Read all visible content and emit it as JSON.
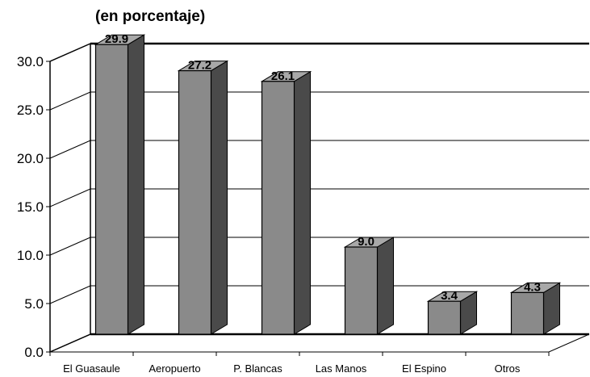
{
  "chart_data": {
    "type": "bar",
    "subtitle": "(en porcentaje)",
    "categories": [
      "El Guasaule",
      "Aeropuerto",
      "P. Blancas",
      "Las Manos",
      "El Espino",
      "Otros"
    ],
    "values": [
      29.9,
      27.2,
      26.1,
      9.0,
      3.4,
      4.3
    ],
    "value_labels": [
      "29.9",
      "27.2",
      "26.1",
      "9.0",
      "3.4",
      "4.3"
    ],
    "y_ticks": [
      "0.0",
      "5.0",
      "10.0",
      "15.0",
      "20.0",
      "25.0",
      "30.0"
    ],
    "ylim": [
      0,
      30
    ],
    "grid": true,
    "legend": "none",
    "style": "3d-bar",
    "colors": {
      "bar_front": "#8a8a8a",
      "bar_side": "#4a4a4a",
      "bar_top": "#a8a8a8"
    }
  }
}
